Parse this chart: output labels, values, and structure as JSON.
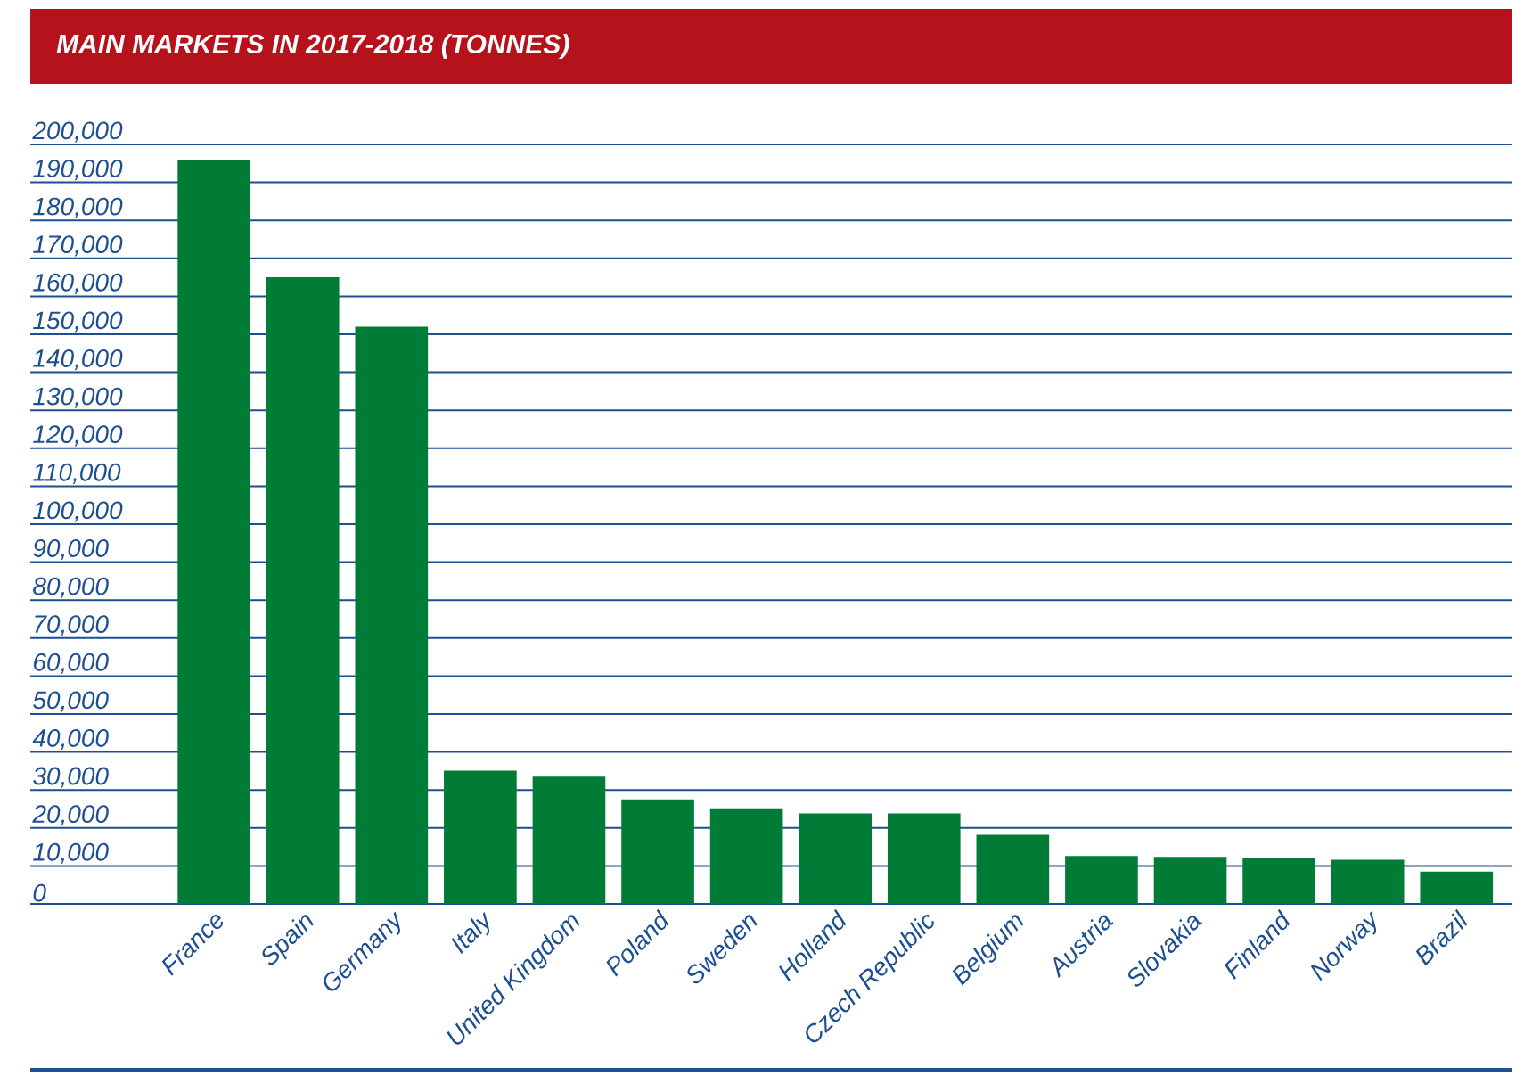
{
  "chart_data": {
    "type": "bar",
    "title": "MAIN MARKETS IN 2017-2018 (TONNES)",
    "categories": [
      "France",
      "Spain",
      "Germany",
      "Italy",
      "United Kingdom",
      "Poland",
      "Sweden",
      "Holland",
      "Czech Republic",
      "Belgium",
      "Austria",
      "Slovakia",
      "Finland",
      "Norway",
      "Brazil"
    ],
    "values": [
      196000,
      165000,
      152000,
      35100,
      33500,
      27500,
      25200,
      23800,
      23800,
      18200,
      12600,
      12400,
      12000,
      11600,
      8500
    ],
    "color": "#007c36",
    "ylim": [
      0,
      200000
    ],
    "yticks": [
      {
        "value": 0,
        "label": "0"
      },
      {
        "value": 10000,
        "label": "10,000"
      },
      {
        "value": 20000,
        "label": "20,000"
      },
      {
        "value": 30000,
        "label": "30,000"
      },
      {
        "value": 40000,
        "label": "40,000"
      },
      {
        "value": 50000,
        "label": "50,000"
      },
      {
        "value": 60000,
        "label": "60,000"
      },
      {
        "value": 70000,
        "label": "70,000"
      },
      {
        "value": 80000,
        "label": "80,000"
      },
      {
        "value": 90000,
        "label": "90,000"
      },
      {
        "value": 100000,
        "label": "100,000"
      },
      {
        "value": 110000,
        "label": "110,000"
      },
      {
        "value": 120000,
        "label": "120,000"
      },
      {
        "value": 130000,
        "label": "130,000"
      },
      {
        "value": 140000,
        "label": "140,000"
      },
      {
        "value": 150000,
        "label": "150,000"
      },
      {
        "value": 160000,
        "label": "160,000"
      },
      {
        "value": 170000,
        "label": "170,000"
      },
      {
        "value": 180000,
        "label": "180,000"
      },
      {
        "value": 190000,
        "label": "190,000"
      },
      {
        "value": 200000,
        "label": "200,000"
      }
    ],
    "grid": "y"
  }
}
